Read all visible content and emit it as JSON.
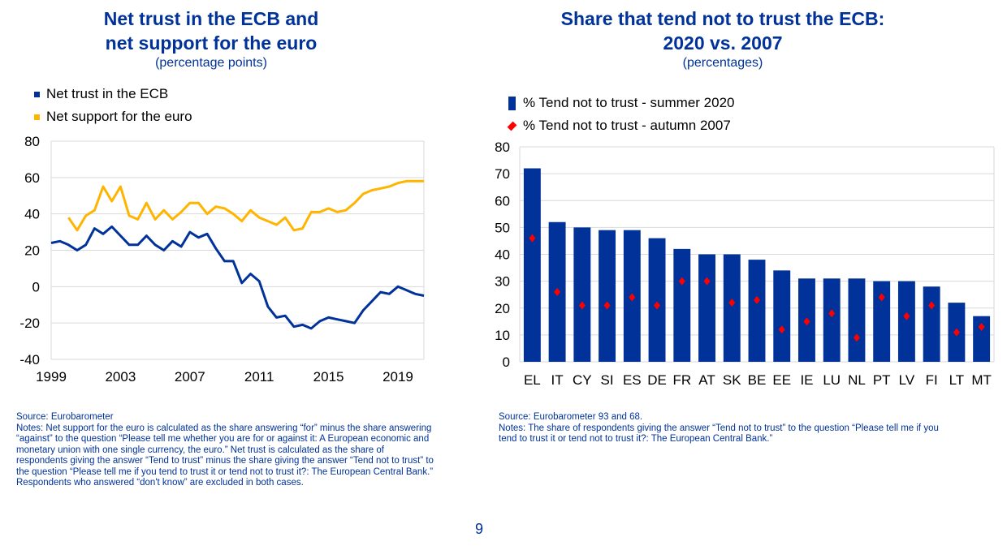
{
  "page_number": "9",
  "left": {
    "title_line1": "Net trust in the ECB and",
    "title_line2": "net support for the euro",
    "subtitle": "(percentage points)",
    "source": "Source: Eurobarometer",
    "notes": "Notes: Net support for the euro is calculated as the share answering “for” minus the share answering “against” to the question “Please tell me whether you are for or against it: A European economic and monetary union with one single currency, the euro.” Net trust is calculated as the share of respondents giving the answer “Tend to trust” minus the share giving the answer “Tend not to trust” to the question “Please tell me if you tend to trust it or tend not to trust it?: The European Central Bank.” Respondents who answered “don't know” are excluded in both cases."
  },
  "right": {
    "title_line1": "Share that tend not to trust the ECB:",
    "title_line2": "2020 vs. 2007",
    "subtitle": "(percentages)",
    "source": "Source: Eurobarometer 93 and 68.",
    "notes": "Notes: The share of respondents giving the answer “Tend not to trust” to the question “Please tell me if you tend to trust it or tend not to trust it?: The European Central Bank.”"
  },
  "chart_data": [
    {
      "type": "line",
      "title": "Net trust in the ECB and net support for the euro",
      "subtitle": "(percentage points)",
      "ylim": [
        -40,
        80
      ],
      "yticks": [
        80,
        60,
        40,
        20,
        0,
        -20,
        -40
      ],
      "xlim": [
        1999,
        2020.5
      ],
      "xticks": [
        "1999",
        "2003",
        "2007",
        "2011",
        "2015",
        "2019"
      ],
      "grid": true,
      "legend_position": "top-left",
      "colors": {
        "trust": "#003299",
        "euro": "#ffb400"
      },
      "series": [
        {
          "name": "Net trust in the ECB",
          "color": "#003299",
          "x": [
            1999,
            1999.5,
            2000,
            2000.5,
            2001,
            2001.5,
            2002,
            2002.5,
            2003,
            2003.5,
            2004,
            2004.5,
            2005,
            2005.5,
            2006,
            2006.5,
            2007,
            2007.5,
            2008,
            2008.5,
            2009,
            2009.5,
            2010,
            2010.5,
            2011,
            2011.5,
            2012,
            2012.5,
            2013,
            2013.5,
            2014,
            2014.5,
            2015,
            2015.5,
            2016,
            2016.5,
            2017,
            2017.5,
            2018,
            2018.5,
            2019,
            2019.5,
            2020,
            2020.5
          ],
          "values": [
            24,
            25,
            23,
            20,
            23,
            32,
            29,
            33,
            28,
            23,
            23,
            28,
            23,
            20,
            25,
            22,
            30,
            27,
            29,
            21,
            14,
            14,
            2,
            7,
            3,
            -11,
            -17,
            -16,
            -22,
            -21,
            -23,
            -19,
            -17,
            -18,
            -19,
            -20,
            -13,
            -8,
            -3,
            -4,
            0,
            -2,
            -4,
            -5
          ]
        },
        {
          "name": "Net support for the euro",
          "color": "#ffb400",
          "x": [
            2000,
            2000.5,
            2001,
            2001.5,
            2002,
            2002.5,
            2003,
            2003.5,
            2004,
            2004.5,
            2005,
            2005.5,
            2006,
            2006.5,
            2007,
            2007.5,
            2008,
            2008.5,
            2009,
            2009.5,
            2010,
            2010.5,
            2011,
            2011.5,
            2012,
            2012.5,
            2013,
            2013.5,
            2014,
            2014.5,
            2015,
            2015.5,
            2016,
            2016.5,
            2017,
            2017.5,
            2018,
            2018.5,
            2019,
            2019.5,
            2020,
            2020.5
          ],
          "values": [
            38,
            31,
            39,
            42,
            55,
            47,
            55,
            39,
            37,
            46,
            37,
            42,
            37,
            41,
            46,
            46,
            40,
            44,
            43,
            40,
            36,
            42,
            38,
            36,
            34,
            38,
            31,
            32,
            41,
            41,
            43,
            41,
            42,
            46,
            51,
            53,
            54,
            55,
            57,
            58,
            58,
            58
          ]
        }
      ]
    },
    {
      "type": "bar",
      "title": "Share that tend not to trust the ECB: 2020 vs. 2007",
      "subtitle": "(percentages)",
      "ylim": [
        0,
        80
      ],
      "yticks": [
        80,
        70,
        60,
        50,
        40,
        30,
        20,
        10,
        0
      ],
      "grid": true,
      "legend_position": "top-left",
      "categories": [
        "EL",
        "IT",
        "CY",
        "SI",
        "ES",
        "DE",
        "FR",
        "AT",
        "SK",
        "BE",
        "EE",
        "IE",
        "LU",
        "NL",
        "PT",
        "LV",
        "FI",
        "LT",
        "MT"
      ],
      "series": [
        {
          "name": "% Tend not to trust - summer 2020",
          "marker": "bar",
          "color": "#003299",
          "values": [
            72,
            52,
            50,
            49,
            49,
            46,
            42,
            40,
            40,
            38,
            34,
            31,
            31,
            31,
            30,
            30,
            28,
            22,
            17
          ]
        },
        {
          "name": "% Tend not to trust - autumn 2007",
          "marker": "diamond",
          "color": "#ff0000",
          "values": [
            46,
            26,
            21,
            21,
            24,
            21,
            30,
            30,
            22,
            23,
            12,
            15,
            18,
            9,
            24,
            17,
            21,
            11,
            13
          ]
        }
      ]
    }
  ]
}
